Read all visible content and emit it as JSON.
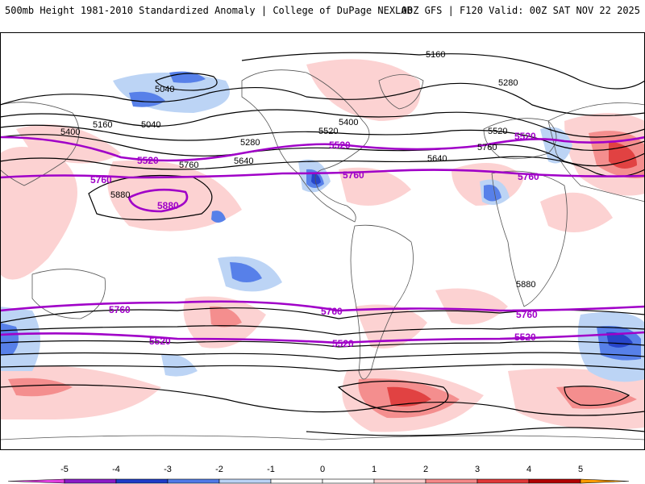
{
  "header": {
    "title": "500mb Height 1981-2010 Standardized Anomaly | College of DuPage NEXLAB",
    "run_info": "00Z GFS | F120 Valid: 00Z SAT NOV 22 2025"
  },
  "colors": {
    "contour_black": "#000000",
    "contour_purple": "#a000c8",
    "land_outline": "#555555",
    "anom_-5": "#e040e0",
    "anom_-4": "#8a1cc8",
    "anom_-3": "#1c3cc8",
    "anom_-2": "#4f7ae8",
    "anom_-1": "#b9d2f5",
    "anom_1": "#fcd0d0",
    "anom_2": "#f48888",
    "anom_3": "#e03838",
    "anom_4": "#b00000",
    "anom_5": "#ff9c00"
  },
  "contour_labels_black": [
    "5160",
    "5280",
    "5040",
    "5400",
    "5520",
    "5640",
    "5760",
    "5880",
    "5160",
    "5280",
    "5040",
    "5400",
    "5520",
    "5640",
    "5760",
    "5880"
  ],
  "contour_labels_purple": [
    "5520",
    "5760",
    "5880"
  ],
  "colorbar": {
    "ticks": [
      "-5",
      "-4",
      "-3",
      "-2",
      "-1",
      "0",
      "1",
      "2",
      "3",
      "4",
      "5"
    ]
  }
}
